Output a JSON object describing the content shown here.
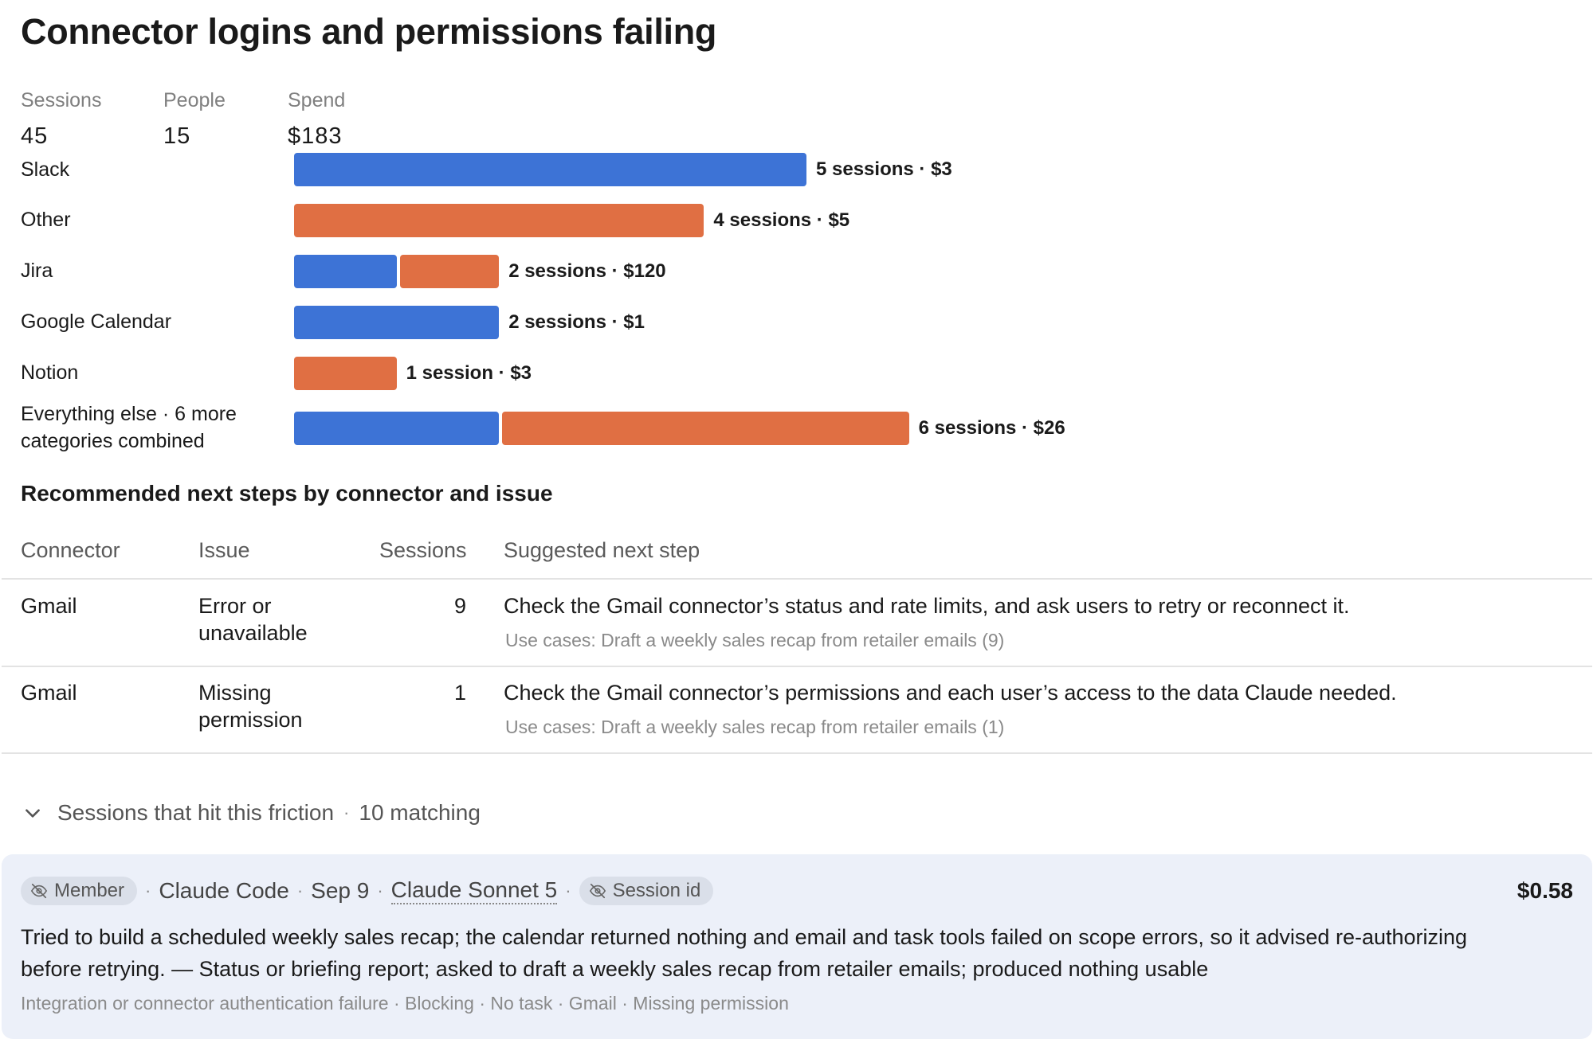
{
  "title": "Connector logins and permissions failing",
  "stats": [
    {
      "label": "Sessions",
      "value": "45"
    },
    {
      "label": "People",
      "value": "15"
    },
    {
      "label": "Spend",
      "value": "$183"
    }
  ],
  "colors": {
    "blue": "#3d73d6",
    "orange": "#e06f43"
  },
  "chart_data": {
    "type": "bar",
    "orientation": "horizontal",
    "stacked": true,
    "categories": [
      "Slack",
      "Other",
      "Jira",
      "Google Calendar",
      "Notion",
      "Everything else · 6 more categories combined"
    ],
    "series": [
      {
        "color": "#3d73d6",
        "values": [
          5,
          0,
          1,
          2,
          0,
          2
        ]
      },
      {
        "color": "#e06f43",
        "values": [
          0,
          4,
          1,
          0,
          1,
          4
        ]
      }
    ],
    "data_labels": [
      "5 sessions · $3",
      "4 sessions · $5",
      "2 sessions · $120",
      "2 sessions · $1",
      "1 session · $3",
      "6 sessions · $26"
    ]
  },
  "section_title": "Recommended next steps by connector and issue",
  "table": {
    "headers": [
      "Connector",
      "Issue",
      "Sessions",
      "Suggested next step"
    ],
    "rows": [
      {
        "connector": "Gmail",
        "issue": "Error or unavailable",
        "sessions": "9",
        "step": "Check the Gmail connector’s status and rate limits, and ask users to retry or reconnect it.",
        "uses": "Use cases: Draft a weekly sales recap from retailer emails (9)"
      },
      {
        "connector": "Gmail",
        "issue": "Missing permission",
        "sessions": "1",
        "step": "Check the Gmail connector’s permissions and each user’s access to the data Claude needed.",
        "uses": "Use cases: Draft a weekly sales recap from retailer emails (1)"
      }
    ]
  },
  "friction": {
    "label": "Sessions that hit this friction",
    "count": "10 matching"
  },
  "session": {
    "role": "Member",
    "product": "Claude Code",
    "date": "Sep 9",
    "model": "Claude Sonnet 5",
    "session_id_label": "Session id",
    "cost": "$0.58",
    "summary": "Tried to build a scheduled weekly sales recap; the calendar returned nothing and email and task tools failed on scope errors, so it advised re-authorizing before retrying. — Status or briefing report; asked to draft a weekly sales recap from retailer emails; produced nothing usable",
    "tags": "Integration or connector authentication failure · Blocking · No task · Gmail · Missing permission"
  },
  "icons": {
    "chevron": "chevron-down-icon",
    "hidden": "eye-off-icon"
  }
}
